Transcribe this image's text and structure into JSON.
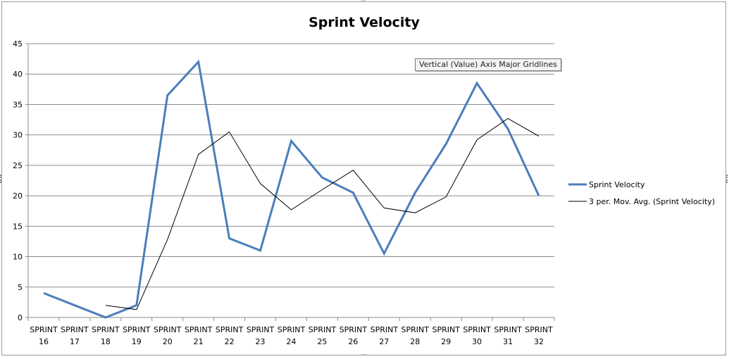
{
  "chart_data": {
    "type": "line",
    "title": "Sprint Velocity",
    "categories": [
      [
        "SPRINT",
        "16"
      ],
      [
        "SPRINT",
        "17"
      ],
      [
        "SPRINT",
        "18"
      ],
      [
        "SPRINT",
        "19"
      ],
      [
        "SPRINT",
        "20"
      ],
      [
        "SPRINT",
        "21"
      ],
      [
        "SPRINT",
        "22"
      ],
      [
        "SPRINT",
        "23"
      ],
      [
        "SPRINT",
        "24"
      ],
      [
        "SPRINT",
        "25"
      ],
      [
        "SPRINT",
        "26"
      ],
      [
        "SPRINT",
        "27"
      ],
      [
        "SPRINT",
        "28"
      ],
      [
        "SPRINT",
        "29"
      ],
      [
        "SPRINT",
        "30"
      ],
      [
        "SPRINT",
        "31"
      ],
      [
        "SPRINT",
        "32"
      ]
    ],
    "ylim": [
      0,
      45
    ],
    "yticks": [
      0,
      5,
      10,
      15,
      20,
      25,
      30,
      35,
      40,
      45
    ],
    "grid": true,
    "legend_position": "right",
    "series": [
      {
        "name": "Sprint Velocity",
        "color": "#4a7ebb",
        "values": [
          4,
          2,
          0,
          2,
          36.5,
          42,
          13,
          11,
          29,
          23,
          20.5,
          10.5,
          20.5,
          28.5,
          38.5,
          31,
          20
        ]
      },
      {
        "name": "3 per. Mov. Avg. (Sprint Velocity)",
        "color": "#000000",
        "values": [
          null,
          null,
          2,
          1.3,
          12.8,
          26.8,
          30.5,
          22,
          17.7,
          21,
          24.2,
          18,
          17.2,
          19.8,
          29.2,
          32.7,
          29.8
        ]
      }
    ],
    "tooltip": "Vertical (Value) Axis Major Gridlines"
  }
}
